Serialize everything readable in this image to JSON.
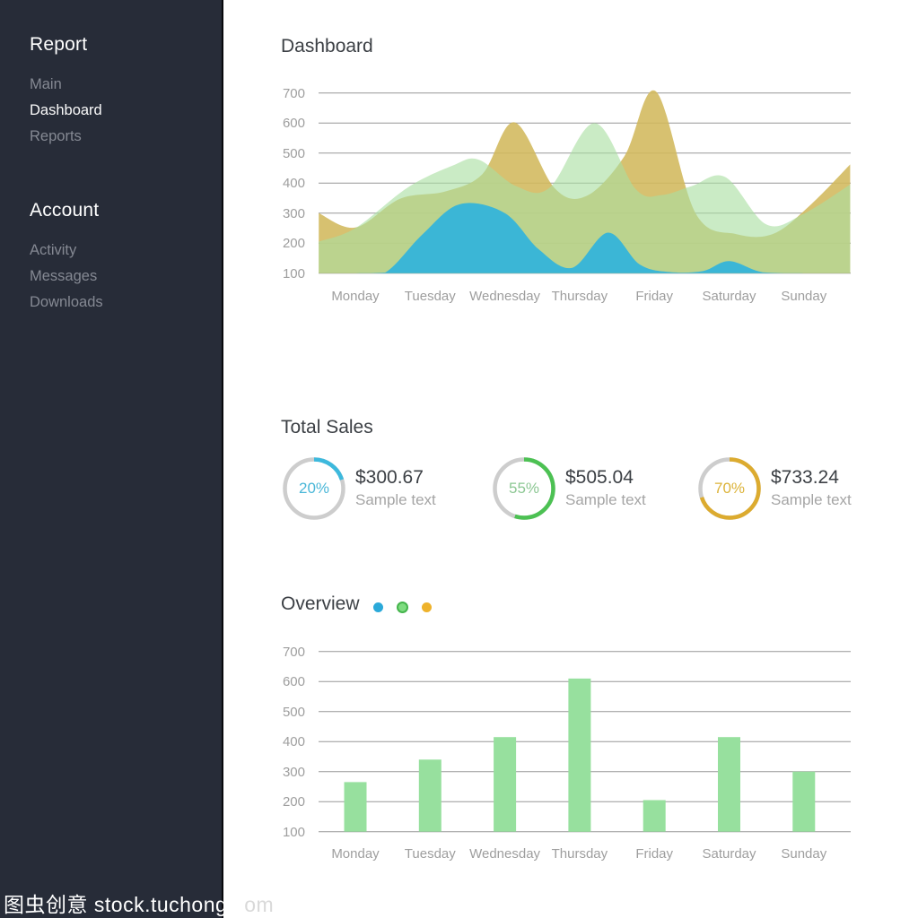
{
  "sidebar": {
    "sections": [
      {
        "heading": "Report",
        "items": [
          {
            "label": "Main",
            "active": false
          },
          {
            "label": "Dashboard",
            "active": true
          },
          {
            "label": "Reports",
            "active": false
          }
        ]
      },
      {
        "heading": "Account",
        "items": [
          {
            "label": "Activity",
            "active": false
          },
          {
            "label": "Messages",
            "active": false
          },
          {
            "label": "Downloads",
            "active": false
          }
        ]
      }
    ]
  },
  "header": {
    "title": "Dashboard"
  },
  "total_sales": {
    "heading": "Total Sales",
    "cards": [
      {
        "percent": 20,
        "percent_label": "20%",
        "value": "$300.67",
        "caption": "Sample text",
        "arc_color": "#3db9dd",
        "text_color": "#4ab7d8"
      },
      {
        "percent": 55,
        "percent_label": "55%",
        "value": "$505.04",
        "caption": "Sample text",
        "arc_color": "#4cc153",
        "text_color": "#8cc793"
      },
      {
        "percent": 70,
        "percent_label": "70%",
        "value": "$733.24",
        "caption": "Sample text",
        "arc_color": "#dcab2f",
        "text_color": "#dcb339"
      }
    ],
    "ring_gray": "#cdcdcd"
  },
  "overview": {
    "heading": "Overview",
    "legend": [
      {
        "name": "blue-series",
        "color": "#2ba9d9",
        "size": 11,
        "border": ""
      },
      {
        "name": "green-series",
        "color": "#7edc80",
        "size": 13,
        "border": "#44b44c"
      },
      {
        "name": "yellow-series",
        "color": "#eeb22b",
        "size": 11,
        "border": ""
      }
    ]
  },
  "watermark": {
    "part_dark": "图虫创意 stock.tuchong.c",
    "part_light": "om",
    "full_text": "图虫创意 stock.tuchong.com"
  },
  "chart_data": [
    {
      "type": "area",
      "title": "Dashboard weekly area chart",
      "categories": [
        "Monday",
        "Tuesday",
        "Wednesday",
        "Thursday",
        "Friday",
        "Saturday",
        "Sunday"
      ],
      "ylim": [
        100,
        700
      ],
      "yticks": [
        100,
        200,
        300,
        400,
        500,
        600,
        700
      ],
      "grid": true,
      "legend_position": "none",
      "note": "points are [day_index, value]; day_index 0=Monday .. 6=Sunday, fractional = between days, -0.49/6.62 = plot edges",
      "series": [
        {
          "name": "yellow",
          "color": "#d2b85c",
          "opacity": 0.88,
          "points": [
            [
              -0.49,
              300
            ],
            [
              0,
              252
            ],
            [
              0.6,
              348
            ],
            [
              1.2,
              372
            ],
            [
              1.7,
              430
            ],
            [
              2.13,
              602
            ],
            [
              2.67,
              382
            ],
            [
              3.1,
              358
            ],
            [
              3.6,
              490
            ],
            [
              4.02,
              705
            ],
            [
              4.55,
              300
            ],
            [
              5.1,
              230
            ],
            [
              5.6,
              232
            ],
            [
              6.1,
              330
            ],
            [
              6.62,
              462
            ]
          ]
        },
        {
          "name": "green",
          "color": "#a9dfa2",
          "opacity": 0.62,
          "points": [
            [
              -0.49,
              205
            ],
            [
              0,
              250
            ],
            [
              0.7,
              385
            ],
            [
              1.3,
              458
            ],
            [
              1.65,
              478
            ],
            [
              2.15,
              390
            ],
            [
              2.6,
              385
            ],
            [
              3.2,
              600
            ],
            [
              3.75,
              380
            ],
            [
              4.1,
              360
            ],
            [
              4.5,
              390
            ],
            [
              4.95,
              420
            ],
            [
              5.5,
              262
            ],
            [
              6,
              298
            ],
            [
              6.62,
              395
            ]
          ]
        },
        {
          "name": "blue",
          "color": "#31b4dc",
          "opacity": 0.93,
          "points": [
            [
              -0.49,
              100
            ],
            [
              0,
              100
            ],
            [
              0.4,
              102
            ],
            [
              0.9,
              230
            ],
            [
              1.4,
              330
            ],
            [
              2,
              300
            ],
            [
              2.45,
              180
            ],
            [
              2.9,
              118
            ],
            [
              3.38,
              235
            ],
            [
              3.8,
              130
            ],
            [
              4.2,
              104
            ],
            [
              4.65,
              107
            ],
            [
              5,
              140
            ],
            [
              5.45,
              103
            ],
            [
              6,
              100
            ],
            [
              6.62,
              100
            ]
          ]
        }
      ]
    },
    {
      "type": "bar",
      "title": "Overview weekly bar chart",
      "categories": [
        "Monday",
        "Tuesday",
        "Wednesday",
        "Thursday",
        "Friday",
        "Saturday",
        "Sunday"
      ],
      "values": [
        265,
        340,
        415,
        610,
        205,
        415,
        300
      ],
      "baseline": 100,
      "ylim": [
        100,
        700
      ],
      "yticks": [
        100,
        200,
        300,
        400,
        500,
        600,
        700
      ],
      "grid": true,
      "bar_color": "#97e09e",
      "xlabel": "",
      "ylabel": ""
    }
  ]
}
